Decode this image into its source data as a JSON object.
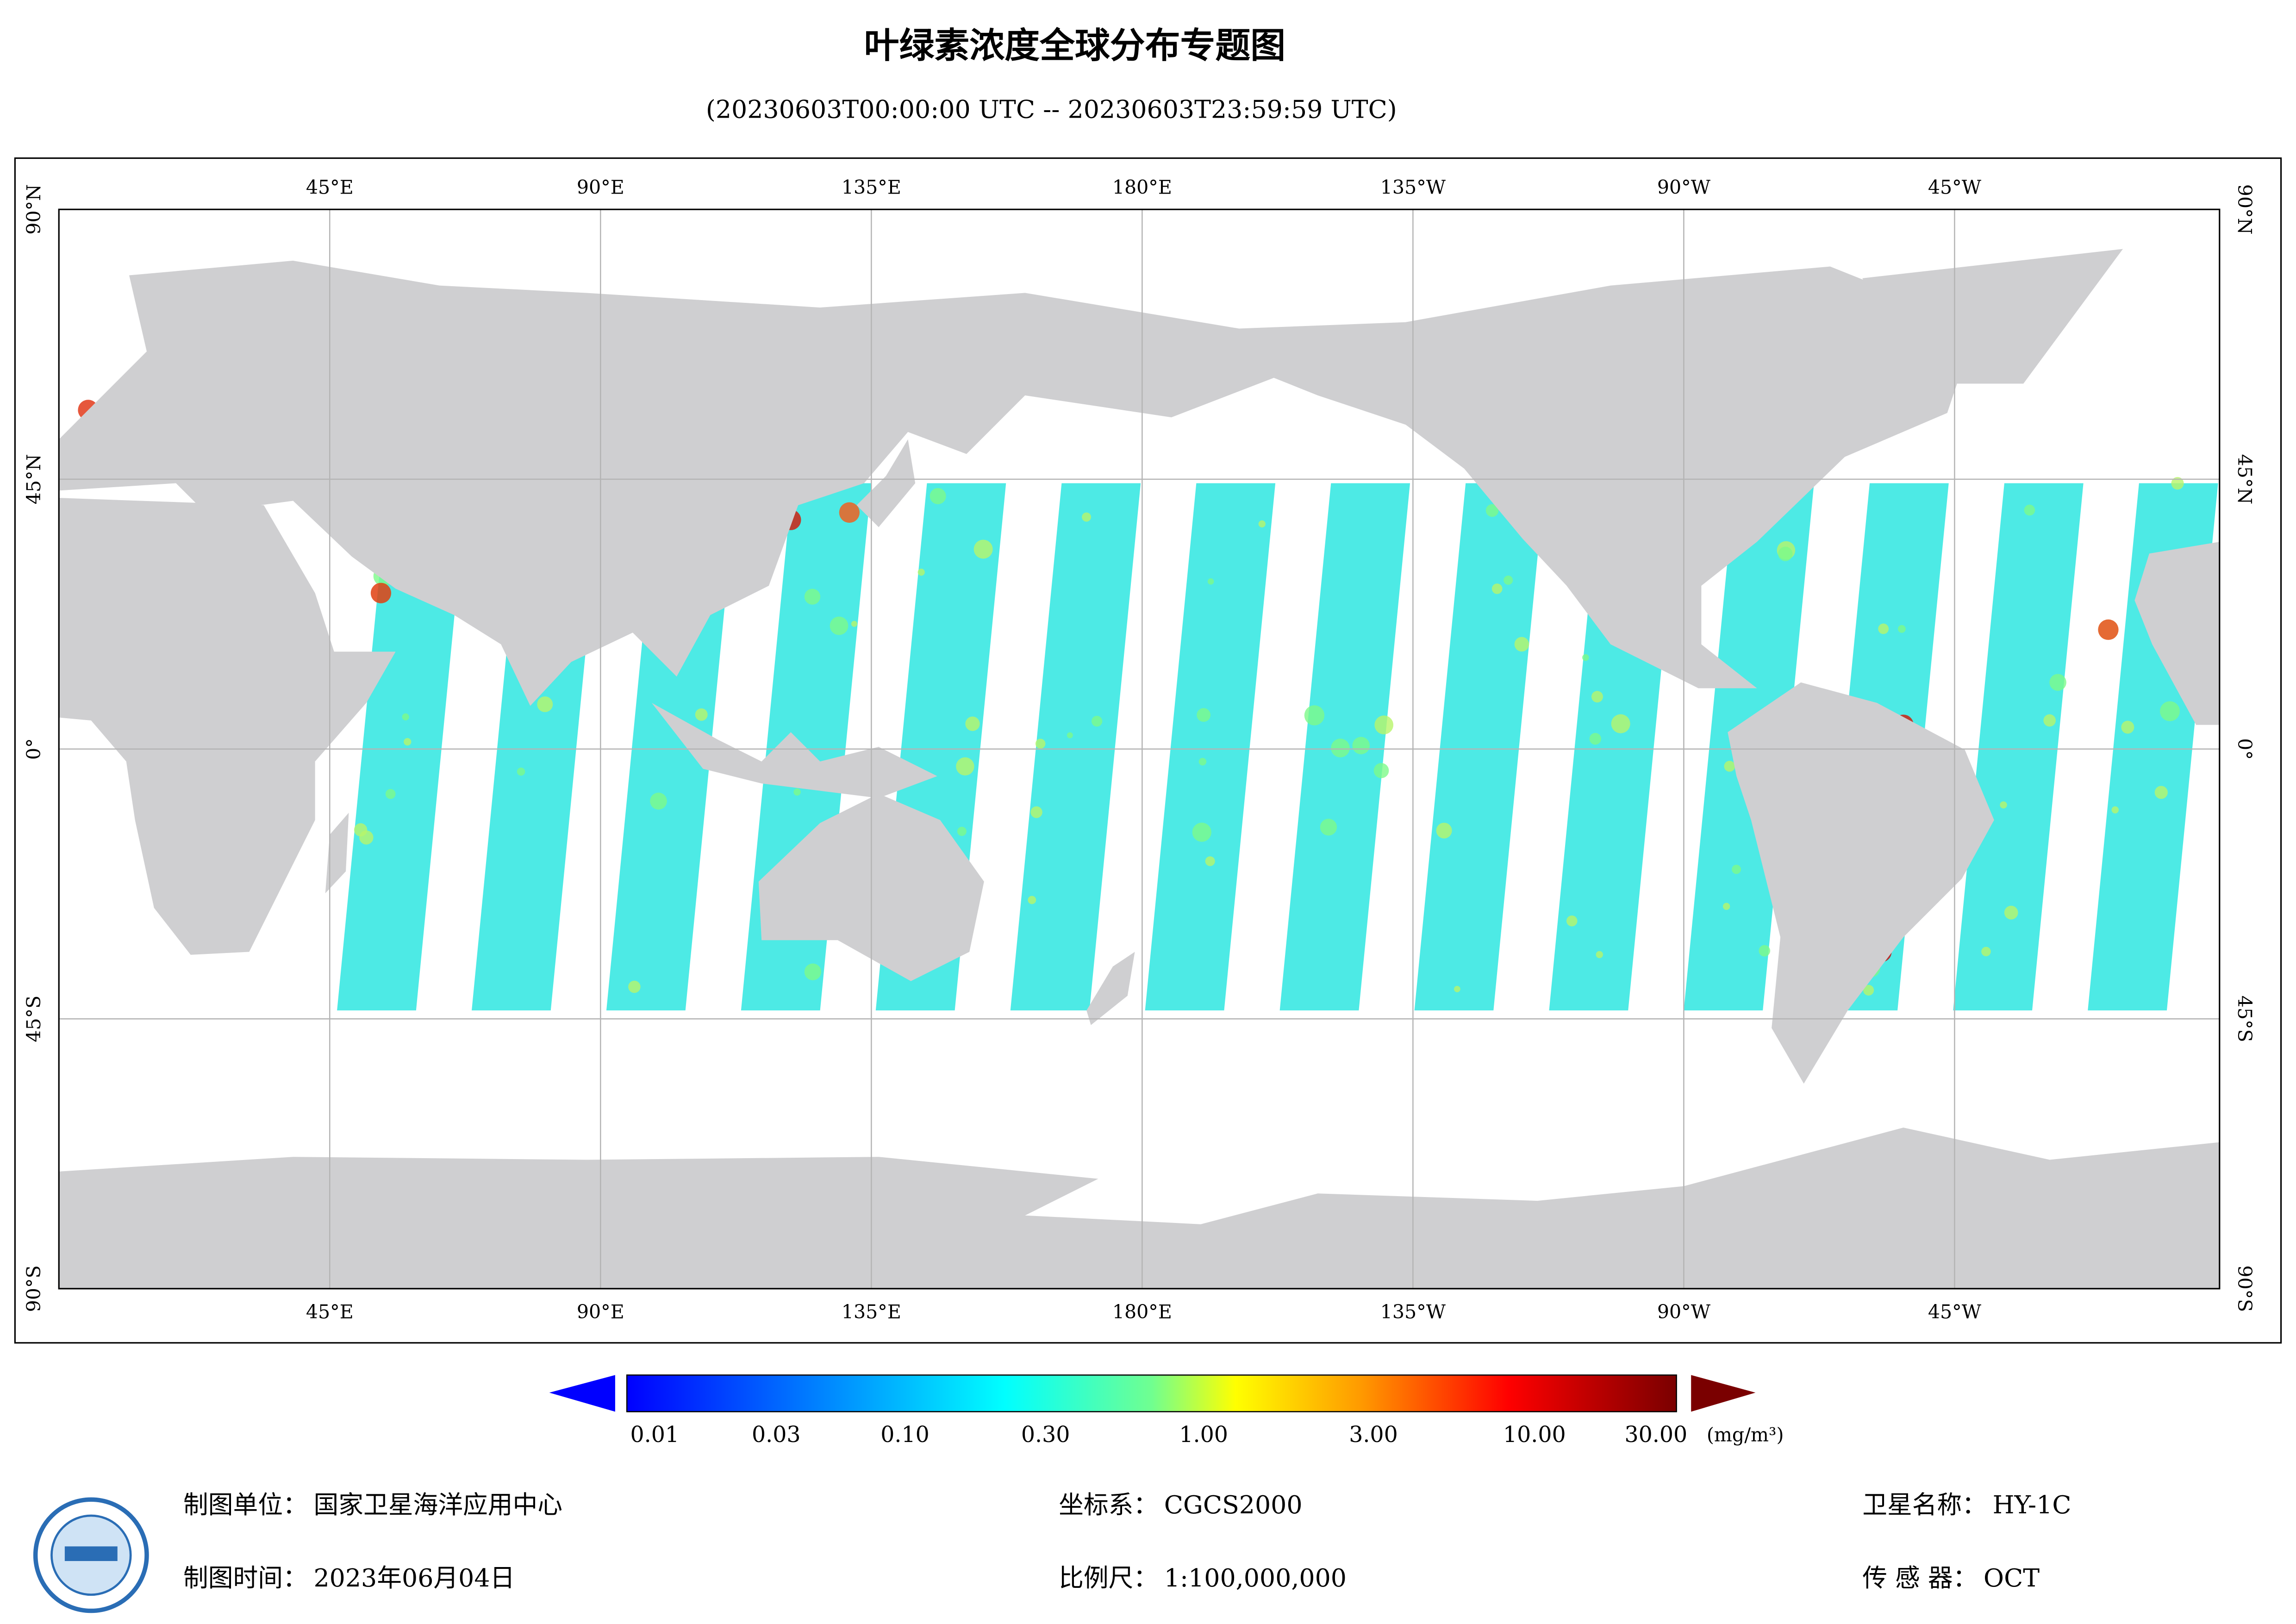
{
  "header": {
    "title": "叶绿素浓度全球分布专题图",
    "subtitle": "(20230603T00:00:00 UTC -- 20230603T23:59:59 UTC)"
  },
  "map": {
    "lon_labels": [
      "45°E",
      "90°E",
      "135°E",
      "180°E",
      "135°W",
      "90°W",
      "45°W"
    ],
    "lat_labels": [
      "90°N",
      "45°N",
      "0°",
      "45°S",
      "90°S"
    ]
  },
  "colorbar": {
    "ticks": [
      "0.01",
      "0.03",
      "0.10",
      "0.30",
      "1.00",
      "3.00",
      "10.00",
      "30.00"
    ],
    "unit": "(mg/m³)"
  },
  "footer": {
    "items": [
      {
        "label": "制图单位：",
        "value": "国家卫星海洋应用中心"
      },
      {
        "label": "制图时间：",
        "value": "2023年06月04日"
      },
      {
        "label": "坐标系：",
        "value": "CGCS2000"
      },
      {
        "label": "比例尺：",
        "value": "1:100,000,000"
      },
      {
        "label": "卫星名称：",
        "value": "HY-1C"
      },
      {
        "label": "传 感 器：",
        "value": "OCT"
      }
    ]
  }
}
